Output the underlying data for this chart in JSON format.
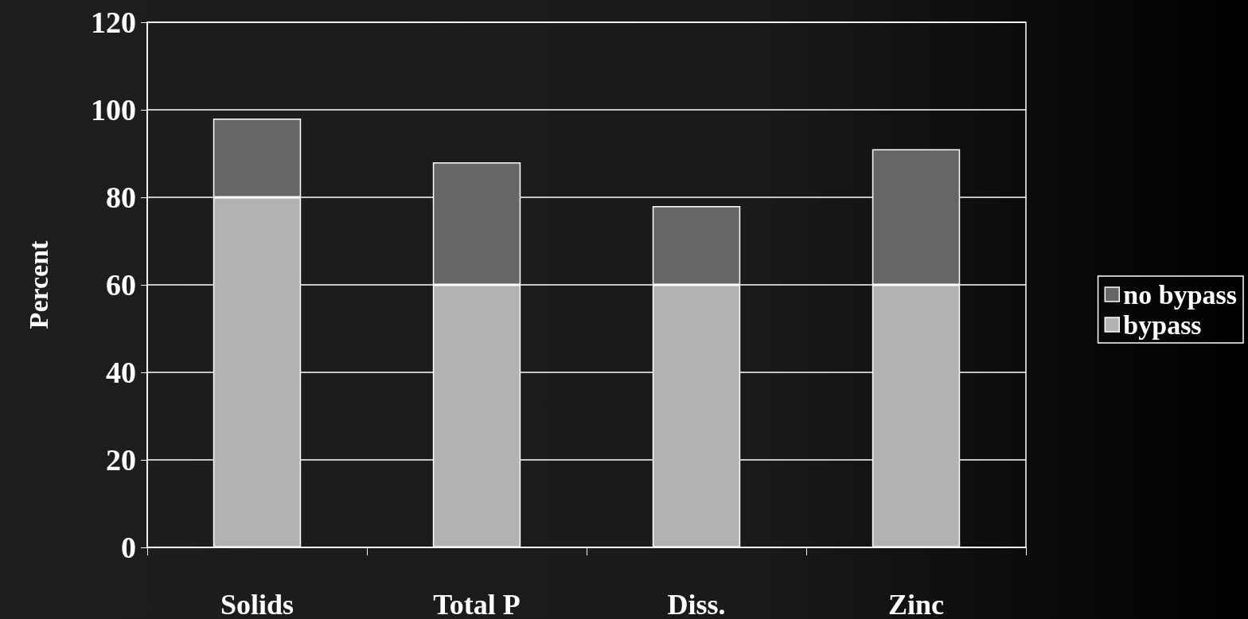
{
  "chart_data": {
    "type": "bar",
    "ylabel": "Percent",
    "categories": [
      "Solids",
      "Total P",
      "Diss.",
      "Zinc"
    ],
    "stacked": true,
    "series": [
      {
        "name": "bypass",
        "color": "#b2b2b2",
        "values": [
          80,
          60,
          60,
          60
        ]
      },
      {
        "name": "no bypass",
        "color": "#666666",
        "values": [
          18,
          28,
          18,
          31
        ]
      }
    ],
    "ylim": [
      0,
      120
    ],
    "yticks": [
      0,
      20,
      40,
      60,
      80,
      100,
      120
    ],
    "grid": "y",
    "legend": "right"
  }
}
